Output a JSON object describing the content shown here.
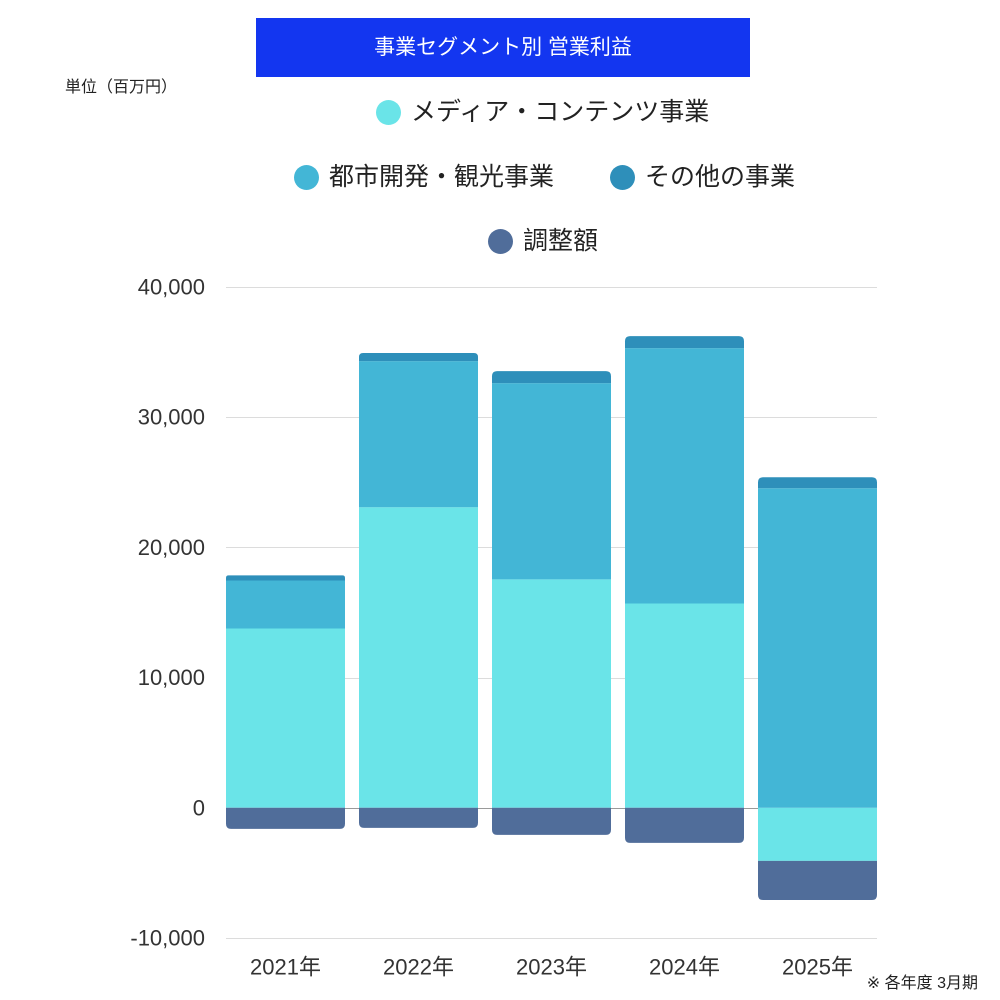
{
  "chart_data": {
    "type": "bar",
    "stacked": true,
    "title": "事業セグメント別 営業利益",
    "ylabel": "単位（百万円）",
    "note": "※ 各年度 3月期",
    "categories": [
      "2021年",
      "2022年",
      "2023年",
      "2024年",
      "2025年"
    ],
    "series": [
      {
        "name": "メディア・コンテンツ事業",
        "color": "#6ae4e8",
        "values": [
          13770,
          23080,
          17540,
          15690,
          -4080
        ]
      },
      {
        "name": "都市開発・観光事業",
        "color": "#43b6d6",
        "values": [
          3690,
          11230,
          15080,
          19620,
          24540
        ]
      },
      {
        "name": "その他の事業",
        "color": "#2e8fba",
        "values": [
          390,
          620,
          920,
          920,
          850
        ]
      },
      {
        "name": "調整額",
        "color": "#506d9a",
        "values": [
          -1620,
          -1540,
          -2080,
          -2690,
          -3000
        ]
      }
    ],
    "ylim": [
      -10000,
      40000
    ],
    "yticks": [
      40000,
      30000,
      20000,
      10000,
      0,
      -10000
    ],
    "ytick_labels": [
      "40,000",
      "30,000",
      "20,000",
      "10,000",
      "0",
      "-10,000"
    ],
    "grid": true,
    "legend_position": "top"
  }
}
